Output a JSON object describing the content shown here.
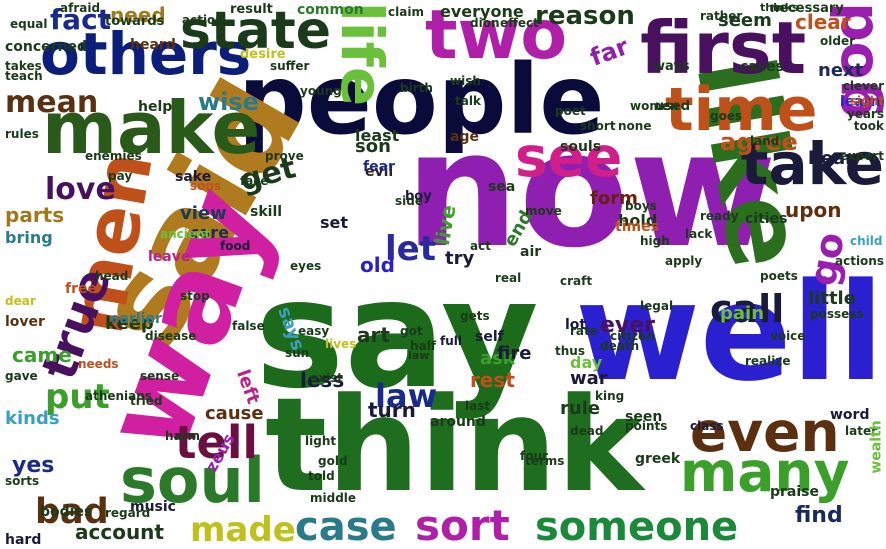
{
  "words": [
    {
      "text": "people",
      "color": "#0b0b3b"
    },
    {
      "text": "now",
      "color": "#8e1fb0"
    },
    {
      "text": "say",
      "color": "#1b6b1b"
    },
    {
      "text": "think",
      "color": "#1f6e1f"
    },
    {
      "text": "said",
      "color": "#b07a1f"
    },
    {
      "text": "way",
      "color": "#d01fa0"
    },
    {
      "text": "well",
      "color": "#2a20d0"
    },
    {
      "text": "like",
      "color": "#2a6e1e"
    },
    {
      "text": "first",
      "color": "#4a1060"
    },
    {
      "text": "others",
      "color": "#0b1f7a"
    },
    {
      "text": "make",
      "color": "#2a5a1a"
    },
    {
      "text": "men",
      "color": "#c0501a"
    },
    {
      "text": "two",
      "color": "#b01fa8"
    },
    {
      "text": "life",
      "color": "#6ac03a"
    },
    {
      "text": "state",
      "color": "#1a3a1a"
    },
    {
      "text": "time",
      "color": "#c0501a"
    },
    {
      "text": "see",
      "color": "#d01f8a"
    },
    {
      "text": "take",
      "color": "#1a1a3a"
    },
    {
      "text": "god",
      "color": "#9a1fb0"
    },
    {
      "text": "many",
      "color": "#3aa02a"
    },
    {
      "text": "even",
      "color": "#5a3010"
    },
    {
      "text": "soul",
      "color": "#2a7a2a"
    },
    {
      "text": "true",
      "color": "#4a1060"
    },
    {
      "text": "tell",
      "color": "#6a1040"
    },
    {
      "text": "sort",
      "color": "#b01fa8"
    },
    {
      "text": "someone",
      "color": "#1a8a3a"
    },
    {
      "text": "case",
      "color": "#2a7a8a"
    },
    {
      "text": "made",
      "color": "#c0c01a"
    },
    {
      "text": "bad",
      "color": "#5a3010"
    },
    {
      "text": "call",
      "color": "#1a1a3a"
    },
    {
      "text": "law",
      "color": "#1a2a8a"
    },
    {
      "text": "go",
      "color": "#9a1fb0"
    },
    {
      "text": "let",
      "color": "#2a2aa0"
    },
    {
      "text": "put",
      "color": "#3aa02a"
    },
    {
      "text": "mean",
      "color": "#5a3010"
    },
    {
      "text": "love",
      "color": "#4a1060"
    },
    {
      "text": "fact",
      "color": "#1a2a8a"
    },
    {
      "text": "need",
      "color": "#a07a1a"
    },
    {
      "text": "reason",
      "color": "#1a3a1a"
    },
    {
      "text": "agree",
      "color": "#c0501a"
    },
    {
      "text": "get",
      "color": "#1a3a1a"
    },
    {
      "text": "wise",
      "color": "#2a7a8a"
    },
    {
      "text": "parts",
      "color": "#a07a1a"
    },
    {
      "text": "view",
      "color": "#1a3a5a"
    },
    {
      "text": "upon",
      "color": "#5a3010"
    },
    {
      "text": "form",
      "color": "#6a2010"
    },
    {
      "text": "ever",
      "color": "#4a1060"
    },
    {
      "text": "find",
      "color": "#1a2a5a"
    },
    {
      "text": "account",
      "color": "#1a3a1a"
    },
    {
      "text": "less",
      "color": "#1a1a3a"
    },
    {
      "text": "turn",
      "color": "#1a1a3a"
    },
    {
      "text": "rule",
      "color": "#1a3a1a"
    },
    {
      "text": "rest",
      "color": "#c0501a"
    },
    {
      "text": "ask",
      "color": "#3aa02a"
    },
    {
      "text": "war",
      "color": "#1a1a3a"
    },
    {
      "text": "yes",
      "color": "#1a2a8a"
    },
    {
      "text": "came",
      "color": "#3aa02a"
    },
    {
      "text": "keep",
      "color": "#1a3a1a"
    },
    {
      "text": "says",
      "color": "#3aa0c0"
    },
    {
      "text": "kinds",
      "color": "#3aa0c0"
    },
    {
      "text": "left",
      "color": "#c01f8a"
    },
    {
      "text": "cause",
      "color": "#5a3010"
    },
    {
      "text": "pain",
      "color": "#6ac03a"
    },
    {
      "text": "little",
      "color": "#1a3a1a"
    },
    {
      "text": "next",
      "color": "#1a2a5a"
    },
    {
      "text": "clear",
      "color": "#c0501a"
    },
    {
      "text": "seem",
      "color": "#1a3a1a"
    },
    {
      "text": "far",
      "color": "#8e1fb0"
    },
    {
      "text": "hear",
      "color": "#1a1a3a"
    },
    {
      "text": "learn",
      "color": "#2a20d0"
    },
    {
      "text": "son",
      "color": "#1a3a1a"
    },
    {
      "text": "least",
      "color": "#1a3a1a"
    },
    {
      "text": "art",
      "color": "#1a3a1a"
    },
    {
      "text": "old",
      "color": "#2a20d0"
    },
    {
      "text": "try",
      "color": "#1a1a3a"
    },
    {
      "text": "live",
      "color": "#3aa02a"
    },
    {
      "text": "fire",
      "color": "#1a1a3a"
    },
    {
      "text": "care",
      "color": "#1a2a5a"
    },
    {
      "text": "bring",
      "color": "#2a7a8a"
    },
    {
      "text": "end",
      "color": "#2a7a2a"
    },
    {
      "text": "set",
      "color": "#1a1a3a"
    },
    {
      "text": "day",
      "color": "#6ac03a"
    },
    {
      "text": "zeus",
      "color": "#9a1fb0"
    },
    {
      "text": "lot",
      "color": "#1a1a3a"
    },
    {
      "text": "hold",
      "color": "#1a3a1a"
    },
    {
      "text": "cities",
      "color": "#1a3a1a"
    },
    {
      "text": "souls",
      "color": "#1a3a1a"
    },
    {
      "text": "everyone",
      "color": "#1a3a1a"
    },
    {
      "text": "heard",
      "color": "#5a3010"
    },
    {
      "text": "common",
      "color": "#2a7a2a"
    },
    {
      "text": "music",
      "color": "#1a1a3a"
    },
    {
      "text": "seen",
      "color": "#1a3a1a"
    },
    {
      "text": "cases",
      "color": "#1a3a1a"
    },
    {
      "text": "sake",
      "color": "#1a1a3a"
    },
    {
      "text": "sons",
      "color": "#c0501a"
    },
    {
      "text": "skill",
      "color": "#1a3a1a"
    },
    {
      "text": "evil",
      "color": "#3a1a1a"
    },
    {
      "text": "fear",
      "color": "#1a2a8a"
    },
    {
      "text": "age",
      "color": "#5a3010"
    },
    {
      "text": "help",
      "color": "#1a3a1a"
    },
    {
      "text": "needs",
      "color": "#c0501a"
    },
    {
      "text": "regard",
      "color": "#1a3a1a"
    },
    {
      "text": "bodies",
      "color": "#1a3a1a"
    },
    {
      "text": "hard",
      "color": "#1a1a3a"
    },
    {
      "text": "concerned",
      "color": "#1a3a1a"
    },
    {
      "text": "praise",
      "color": "#1a3a1a"
    },
    {
      "text": "earlier",
      "color": "#2a7a8a"
    },
    {
      "text": "around",
      "color": "#1a3a1a"
    },
    {
      "text": "greek",
      "color": "#1a3a1a"
    },
    {
      "text": "self",
      "color": "#1a1a3a"
    },
    {
      "text": "result",
      "color": "#1a3a1a"
    },
    {
      "text": "towards",
      "color": "#1a3a1a"
    },
    {
      "text": "desire",
      "color": "#c0c01a"
    },
    {
      "text": "necessary",
      "color": "#1a3a1a"
    },
    {
      "text": "thinks",
      "color": "#1a3a1a"
    },
    {
      "text": "leave",
      "color": "#c01f8a"
    },
    {
      "text": "free",
      "color": "#c0501a"
    },
    {
      "text": "sea",
      "color": "#1a3a1a"
    },
    {
      "text": "boy",
      "color": "#1a1a3a"
    },
    {
      "text": "lover",
      "color": "#5a3010"
    },
    {
      "text": "dear",
      "color": "#c0c01a"
    },
    {
      "text": "gave",
      "color": "#1a3a1a"
    },
    {
      "text": "thus",
      "color": "#1a3a1a"
    },
    {
      "text": "times",
      "color": "#c0501a"
    },
    {
      "text": "king",
      "color": "#1a3a1a"
    },
    {
      "text": "sense",
      "color": "#1a3a1a"
    },
    {
      "text": "ancient",
      "color": "#6ac03a"
    },
    {
      "text": "food",
      "color": "#1a1a3a"
    },
    {
      "text": "full",
      "color": "#1a1a3a"
    },
    {
      "text": "boys",
      "color": "#1a3a1a"
    },
    {
      "text": "real",
      "color": "#1a3a1a"
    },
    {
      "text": "side",
      "color": "#1a3a1a"
    },
    {
      "text": "air",
      "color": "#1a3a1a"
    },
    {
      "text": "used",
      "color": "#1a3a1a"
    },
    {
      "text": "years",
      "color": "#1a3a1a"
    },
    {
      "text": "sight",
      "color": "#c0501a"
    },
    {
      "text": "ways",
      "color": "#1a3a1a"
    },
    {
      "text": "class",
      "color": "#1a1a3a"
    },
    {
      "text": "word",
      "color": "#1a1a3a"
    },
    {
      "text": "later",
      "color": "#1a3a1a"
    },
    {
      "text": "wealth",
      "color": "#6ac03a"
    },
    {
      "text": "poets",
      "color": "#1a3a1a"
    },
    {
      "text": "possess",
      "color": "#1a3a1a"
    },
    {
      "text": "child",
      "color": "#3aa0c0"
    },
    {
      "text": "older",
      "color": "#1a3a1a"
    },
    {
      "text": "rather",
      "color": "#1a3a1a"
    },
    {
      "text": "lives",
      "color": "#c0c01a"
    },
    {
      "text": "harm",
      "color": "#1a3a1a"
    },
    {
      "text": "dion",
      "color": "#1a3a1a"
    },
    {
      "text": "afraid",
      "color": "#1a3a1a"
    },
    {
      "text": "claim",
      "color": "#1a3a1a"
    },
    {
      "text": "equal",
      "color": "#1a3a1a"
    },
    {
      "text": "takes",
      "color": "#1a3a1a"
    },
    {
      "text": "rules",
      "color": "#1a3a1a"
    },
    {
      "text": "goes",
      "color": "#1a3a1a"
    },
    {
      "text": "land",
      "color": "#1a3a1a"
    },
    {
      "text": "expert",
      "color": "#1a3a1a"
    },
    {
      "text": "took",
      "color": "#1a3a1a"
    },
    {
      "text": "clever",
      "color": "#1a3a1a"
    },
    {
      "text": "light",
      "color": "#1a3a1a"
    },
    {
      "text": "gold",
      "color": "#1a3a1a"
    },
    {
      "text": "told",
      "color": "#1a3a1a"
    },
    {
      "text": "got",
      "color": "#1a3a1a"
    },
    {
      "text": "easy",
      "color": "#1a3a1a"
    },
    {
      "text": "short",
      "color": "#1a3a1a"
    },
    {
      "text": "poet",
      "color": "#1a3a1a"
    },
    {
      "text": "none",
      "color": "#1a3a1a"
    },
    {
      "text": "birth",
      "color": "#1a3a1a"
    },
    {
      "text": "move",
      "color": "#1a3a1a"
    },
    {
      "text": "craft",
      "color": "#1a3a1a"
    },
    {
      "text": "death",
      "color": "#1a3a1a"
    },
    {
      "text": "middle",
      "color": "#1a3a1a"
    },
    {
      "text": "women",
      "color": "#1a3a1a"
    },
    {
      "text": "dead",
      "color": "#1a3a1a"
    },
    {
      "text": "rate",
      "color": "#1a3a1a"
    },
    {
      "text": "last",
      "color": "#1a3a1a"
    },
    {
      "text": "four",
      "color": "#1a3a1a"
    },
    {
      "text": "half",
      "color": "#1a3a1a"
    },
    {
      "text": "law",
      "color": "#1a3a1a"
    },
    {
      "text": "pay",
      "color": "#1a3a1a"
    },
    {
      "text": "enemies",
      "color": "#1a3a1a"
    },
    {
      "text": "stop",
      "color": "#1a3a1a"
    },
    {
      "text": "realize",
      "color": "#1a3a1a"
    },
    {
      "text": "act",
      "color": "#1a3a1a"
    },
    {
      "text": "points",
      "color": "#1a3a1a"
    },
    {
      "text": "head",
      "color": "#1a3a1a"
    },
    {
      "text": "lack",
      "color": "#1a3a1a"
    },
    {
      "text": "high",
      "color": "#1a3a1a"
    },
    {
      "text": "citizen",
      "color": "#1a3a1a"
    },
    {
      "text": "athenians",
      "color": "#1a3a1a"
    },
    {
      "text": "disease",
      "color": "#1a3a1a"
    },
    {
      "text": "prove",
      "color": "#1a3a1a"
    },
    {
      "text": "ready",
      "color": "#1a3a1a"
    },
    {
      "text": "exist",
      "color": "#1a3a1a"
    },
    {
      "text": "false",
      "color": "#1a3a1a"
    },
    {
      "text": "gets",
      "color": "#1a3a1a"
    },
    {
      "text": "talk",
      "color": "#1a3a1a"
    },
    {
      "text": "terms",
      "color": "#1a3a1a"
    },
    {
      "text": "wish",
      "color": "#1a3a1a"
    },
    {
      "text": "effect",
      "color": "#1a3a1a"
    },
    {
      "text": "action",
      "color": "#1a3a1a"
    },
    {
      "text": "suffer",
      "color": "#1a3a1a"
    },
    {
      "text": "young",
      "color": "#1a3a1a"
    },
    {
      "text": "eyes",
      "color": "#1a3a1a"
    },
    {
      "text": "sun",
      "color": "#1a3a1a"
    },
    {
      "text": "tried",
      "color": "#1a3a1a"
    },
    {
      "text": "teach",
      "color": "#1a3a1a"
    },
    {
      "text": "face",
      "color": "#1a3a1a"
    },
    {
      "text": "actions",
      "color": "#1a3a1a"
    },
    {
      "text": "voice",
      "color": "#1a3a1a"
    },
    {
      "text": "legal",
      "color": "#1a3a1a"
    },
    {
      "text": "sorts",
      "color": "#1a3a1a"
    },
    {
      "text": "apply",
      "color": "#1a3a1a"
    }
  ]
}
